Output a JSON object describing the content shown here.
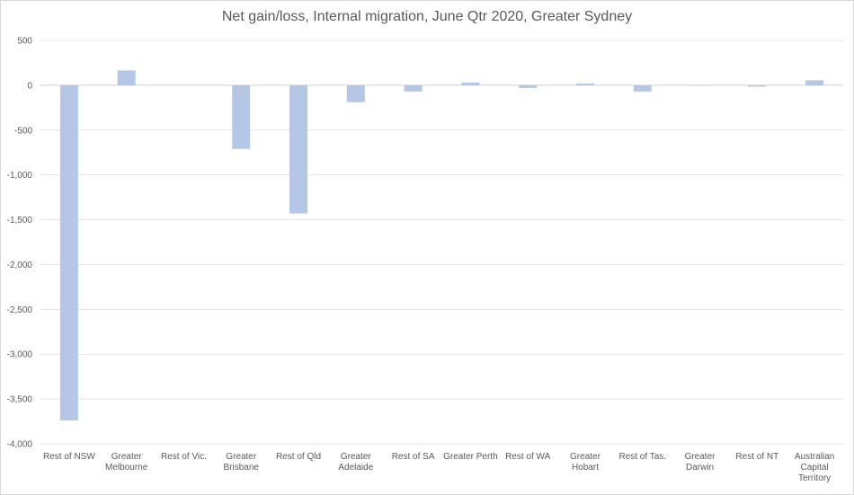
{
  "chart_data": {
    "type": "bar",
    "title": "Net gain/loss, Internal migration, June Qtr 2020, Greater Sydney",
    "xlabel": "",
    "ylabel": "",
    "ylim": [
      -4000,
      500
    ],
    "yticks": [
      500,
      0,
      -500,
      -1000,
      -1500,
      -2000,
      -2500,
      -3000,
      -3500,
      -4000
    ],
    "ytick_labels": [
      "500",
      "0",
      "-500",
      "-1,000",
      "-1,500",
      "-2,000",
      "-2,500",
      "-3,000",
      "-3,500",
      "-4,000"
    ],
    "grid": true,
    "legend": "none",
    "bar_color": "#b4c7e7",
    "categories": [
      [
        "Rest of NSW"
      ],
      [
        "Greater",
        "Melbourne"
      ],
      [
        "Rest of Vic."
      ],
      [
        "Greater",
        "Brisbane"
      ],
      [
        "Rest of Qld"
      ],
      [
        "Greater",
        "Adelaide"
      ],
      [
        "Rest of SA"
      ],
      [
        "Greater Perth"
      ],
      [
        "Rest of WA"
      ],
      [
        "Greater",
        "Hobart"
      ],
      [
        "Rest of Tas."
      ],
      [
        "Greater",
        "Darwin"
      ],
      [
        "Rest of NT"
      ],
      [
        "Australian",
        "Capital",
        "Territory"
      ]
    ],
    "values": [
      -3740,
      165,
      0,
      -710,
      -1430,
      -190,
      -70,
      30,
      -30,
      20,
      -70,
      -5,
      -15,
      55
    ]
  }
}
